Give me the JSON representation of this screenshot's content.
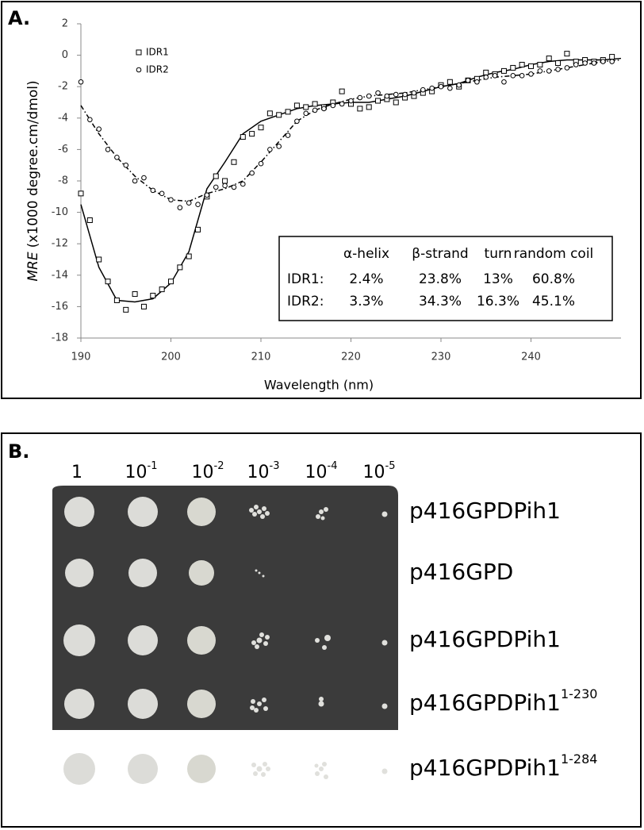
{
  "panel_a": {
    "label": "A."
  },
  "chart_data": {
    "type": "scatter",
    "xlabel": "Wavelength (nm)",
    "ylabel": [
      "MRE",
      "(x1000 degree.cm/dmol)"
    ],
    "xlim": [
      190,
      250
    ],
    "xticks": [
      190,
      200,
      210,
      220,
      230,
      240
    ],
    "ylim": [
      -18,
      2
    ],
    "yticks": [
      -18,
      -16,
      -14,
      -12,
      -10,
      -8,
      -6,
      -4,
      -2,
      0,
      2
    ],
    "grid": false,
    "legend": "upper left",
    "x": [
      190,
      191,
      192,
      193,
      194,
      195,
      196,
      197,
      198,
      199,
      200,
      201,
      202,
      203,
      204,
      205,
      206,
      207,
      208,
      209,
      210,
      211,
      212,
      213,
      214,
      215,
      216,
      217,
      218,
      219,
      220,
      221,
      222,
      223,
      224,
      225,
      226,
      227,
      228,
      229,
      230,
      231,
      232,
      233,
      234,
      235,
      236,
      237,
      238,
      239,
      240,
      241,
      242,
      243,
      244,
      245,
      246,
      247,
      248,
      249
    ],
    "fit_x": [
      190,
      192,
      194,
      196,
      198,
      200,
      202,
      204,
      206,
      208,
      210,
      212,
      214,
      216,
      218,
      220,
      222,
      224,
      226,
      228,
      230,
      232,
      234,
      236,
      238,
      240,
      242,
      244,
      246,
      248,
      250
    ],
    "series": [
      {
        "name": "IDR1",
        "color": "#000000",
        "marker": "square",
        "line_style": "solid",
        "values": [
          -8.8,
          -10.5,
          -13.0,
          -14.4,
          -15.6,
          -16.2,
          -15.2,
          -16.0,
          -15.3,
          -14.9,
          -14.4,
          -13.5,
          -12.8,
          -11.1,
          -9.0,
          -7.7,
          -8.0,
          -6.8,
          -5.2,
          -5.0,
          -4.6,
          -3.7,
          -3.8,
          -3.6,
          -3.2,
          -3.3,
          -3.1,
          -3.3,
          -3.0,
          -2.3,
          -3.1,
          -3.4,
          -3.3,
          -2.9,
          -2.8,
          -3.0,
          -2.7,
          -2.6,
          -2.4,
          -2.3,
          -1.9,
          -1.7,
          -2.0,
          -1.6,
          -1.5,
          -1.1,
          -1.2,
          -1.0,
          -0.8,
          -0.6,
          -0.7,
          -0.6,
          -0.2,
          -0.5,
          0.1,
          -0.4,
          -0.3,
          -0.4,
          -0.3,
          -0.1
        ],
        "fit": [
          -9.5,
          -13.5,
          -15.6,
          -15.7,
          -15.5,
          -14.5,
          -12.5,
          -8.5,
          -6.8,
          -5.0,
          -4.2,
          -3.8,
          -3.4,
          -3.2,
          -3.1,
          -3.0,
          -3.0,
          -2.8,
          -2.6,
          -2.3,
          -2.0,
          -1.8,
          -1.4,
          -1.1,
          -0.9,
          -0.6,
          -0.4,
          -0.3,
          -0.3,
          -0.3,
          -0.2
        ]
      },
      {
        "name": "IDR2",
        "color": "#000000",
        "marker": "circle",
        "line_style": "dashdot",
        "values": [
          -1.7,
          -4.1,
          -4.7,
          -6.0,
          -6.5,
          -7.0,
          -8.0,
          -7.8,
          -8.6,
          -8.8,
          -9.2,
          -9.7,
          -9.4,
          -9.5,
          -8.9,
          -8.4,
          -8.3,
          -8.4,
          -8.2,
          -7.5,
          -6.9,
          -6.0,
          -5.8,
          -5.1,
          -4.2,
          -3.7,
          -3.5,
          -3.4,
          -3.2,
          -3.1,
          -2.9,
          -2.7,
          -2.6,
          -2.4,
          -2.6,
          -2.5,
          -2.5,
          -2.4,
          -2.2,
          -2.1,
          -2.0,
          -2.1,
          -1.9,
          -1.6,
          -1.7,
          -1.4,
          -1.3,
          -1.7,
          -1.3,
          -1.3,
          -1.2,
          -1.0,
          -1.0,
          -0.9,
          -0.8,
          -0.6,
          -0.5,
          -0.5,
          -0.4,
          -0.4
        ],
        "fit": [
          -3.2,
          -5.0,
          -6.5,
          -7.7,
          -8.6,
          -9.2,
          -9.3,
          -8.8,
          -8.5,
          -8.0,
          -6.8,
          -5.5,
          -4.2,
          -3.5,
          -3.1,
          -2.8,
          -2.6,
          -2.5,
          -2.4,
          -2.2,
          -2.0,
          -1.8,
          -1.6,
          -1.4,
          -1.3,
          -1.2,
          -1.0,
          -0.8,
          -0.6,
          -0.4,
          -0.3
        ]
      }
    ],
    "inset_table": {
      "columns": [
        "α-helix",
        "β-strand",
        "turn",
        "random coil"
      ],
      "rows": [
        {
          "label": "IDR1:",
          "cells": [
            "2.4%",
            "23.8%",
            "13%",
            "60.8%"
          ]
        },
        {
          "label": "IDR2:",
          "cells": [
            "3.3%",
            "34.3%",
            "16.3%",
            "45.1%"
          ]
        }
      ]
    }
  },
  "panel_b": {
    "label": "B.",
    "dilutions": [
      {
        "base": "1"
      },
      {
        "base": "10",
        "exp": "-1"
      },
      {
        "base": "10",
        "exp": "-2"
      },
      {
        "base": "10",
        "exp": "-3"
      },
      {
        "base": "10",
        "exp": "-4"
      },
      {
        "base": "10",
        "exp": "-5"
      }
    ],
    "strains": [
      {
        "base": "p416GPDPih1"
      },
      {
        "base": "p416GPD"
      },
      {
        "base": "p416GPDPih1"
      },
      {
        "base": "p416GPDPih1",
        "sup": "1-230"
      },
      {
        "base": "p416GPDPih1",
        "sup": "1-284"
      }
    ]
  }
}
